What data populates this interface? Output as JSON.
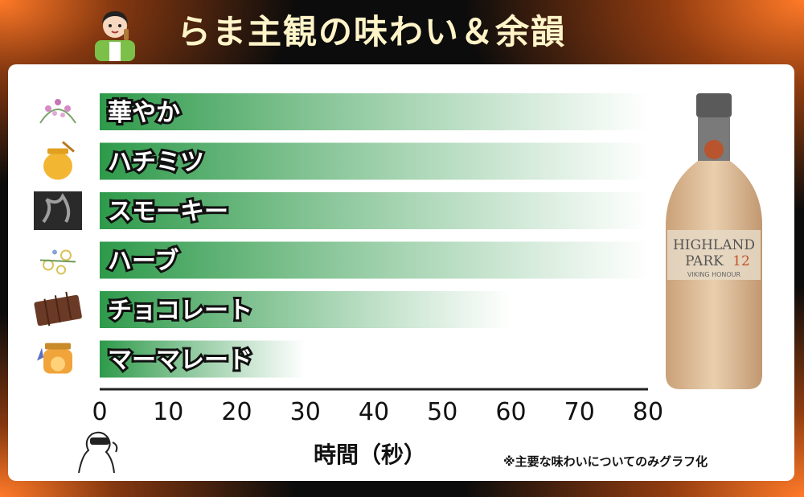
{
  "header": {
    "title": "らま主観の味わい＆余韻"
  },
  "chart_data": {
    "type": "bar",
    "orientation": "horizontal",
    "categories": [
      "華やか",
      "ハチミツ",
      "スモーキー",
      "ハーブ",
      "チョコレート",
      "マーマレード"
    ],
    "values": [
      80,
      80,
      80,
      80,
      60,
      30
    ],
    "xlabel": "時間（秒）",
    "xlim": [
      0,
      80
    ],
    "xticks": [
      0,
      10,
      20,
      30,
      40,
      50,
      60,
      70,
      80
    ],
    "grid": false,
    "bar_color_start": "#2e9a4a",
    "bar_color_end": "#ffffff"
  },
  "category_icons": [
    "heather-flower-icon",
    "honey-jar-icon",
    "smoke-icon",
    "herb-flowers-icon",
    "chocolate-icon",
    "marmalade-jar-icon"
  ],
  "bottle_label": {
    "line1": "HIGHLAND",
    "line2": "PARK",
    "age": "12",
    "line3": "VIKING HONOUR"
  },
  "footnote": "※主要な味わいについてのみグラフ化"
}
